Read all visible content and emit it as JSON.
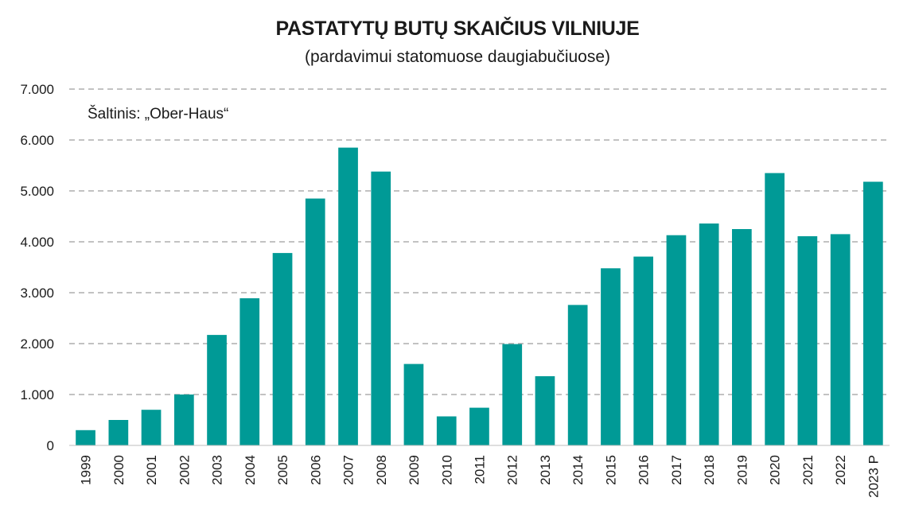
{
  "chart_data": {
    "type": "bar",
    "title": "PASTATYTŲ BUTŲ SKAIČIUS VILNIUJE",
    "subtitle": "(pardavimui statomuose daugiabučiuose)",
    "annotation": "Šaltinis: „Ober-Haus“",
    "xlabel": "",
    "ylabel": "",
    "ylim": [
      0,
      7000
    ],
    "yticks": [
      0,
      1000,
      2000,
      3000,
      4000,
      5000,
      6000,
      7000
    ],
    "ytick_labels": [
      "0",
      "1.000",
      "2.000",
      "3.000",
      "4.000",
      "5.000",
      "6.000",
      "7.000"
    ],
    "categories": [
      "1999",
      "2000",
      "2001",
      "2002",
      "2003",
      "2004",
      "2005",
      "2006",
      "2007",
      "2008",
      "2009",
      "2010",
      "2011",
      "2012",
      "2013",
      "2014",
      "2015",
      "2016",
      "2017",
      "2018",
      "2019",
      "2020",
      "2021",
      "2022",
      "2023 P"
    ],
    "values": [
      300,
      500,
      700,
      1000,
      2170,
      2890,
      3780,
      4850,
      5850,
      5380,
      1600,
      570,
      740,
      1990,
      1360,
      2760,
      3480,
      3710,
      4130,
      4360,
      4250,
      5350,
      4110,
      4150,
      5180
    ],
    "bar_color": "#009a96",
    "grid": true,
    "grid_style": "dashed"
  }
}
